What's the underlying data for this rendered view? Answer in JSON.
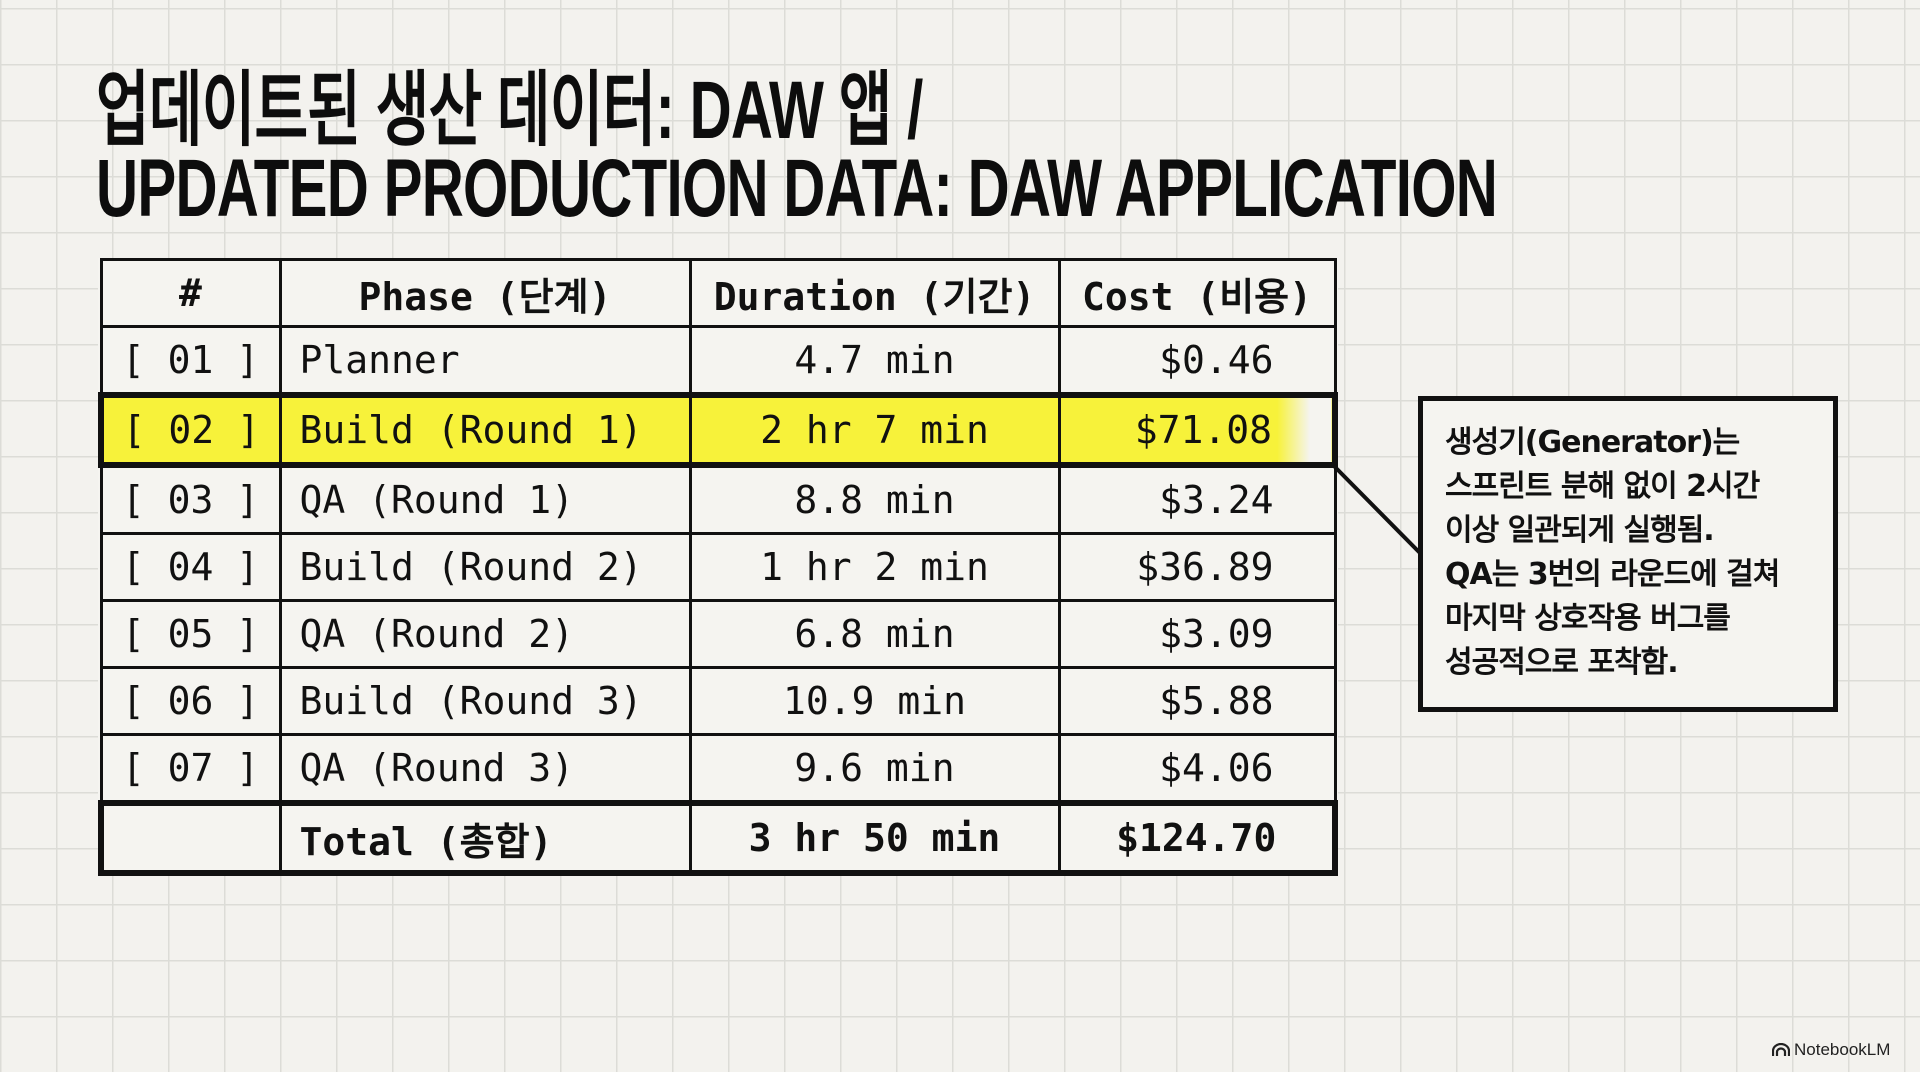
{
  "title": {
    "line1": "업데이트된 생산 데이터: DAW 앱 /",
    "line2": "UPDATED PRODUCTION DATA: DAW APPLICATION"
  },
  "table": {
    "headers": [
      "#",
      "Phase (단계)",
      "Duration (기간)",
      "Cost (비용)"
    ],
    "rows": [
      {
        "num": "[ 01 ]",
        "phase": "Planner",
        "duration": "4.7 min",
        "cost": "$0.46"
      },
      {
        "num": "[ 02 ]",
        "phase": "Build (Round 1)",
        "duration": "2 hr 7 min",
        "cost": "$71.08",
        "highlighted": true
      },
      {
        "num": "[ 03 ]",
        "phase": "QA (Round 1)",
        "duration": "8.8 min",
        "cost": "$3.24"
      },
      {
        "num": "[ 04 ]",
        "phase": "Build (Round 2)",
        "duration": "1 hr 2 min",
        "cost": "$36.89"
      },
      {
        "num": "[ 05 ]",
        "phase": "QA (Round 2)",
        "duration": "6.8 min",
        "cost": "$3.09"
      },
      {
        "num": "[ 06 ]",
        "phase": "Build (Round 3)",
        "duration": "10.9 min",
        "cost": "$5.88"
      },
      {
        "num": "[ 07 ]",
        "phase": "QA (Round 3)",
        "duration": "9.6 min",
        "cost": "$4.06"
      }
    ],
    "total": {
      "label": "Total (총합)",
      "duration": "3 hr 50 min",
      "cost": "$124.70"
    }
  },
  "callout": {
    "text": "생성기(Generator)는\n스프린트 분해 없이 2시간\n이상 일관되게 실행됨.\nQA는 3번의 라운드에 걸쳐\n마지막 상호작용 버그를\n성공적으로 포착함."
  },
  "highlight_color": "#f7f23a",
  "logo": {
    "text": "NotebookLM",
    "icon": "notebooklm-logo-icon"
  }
}
